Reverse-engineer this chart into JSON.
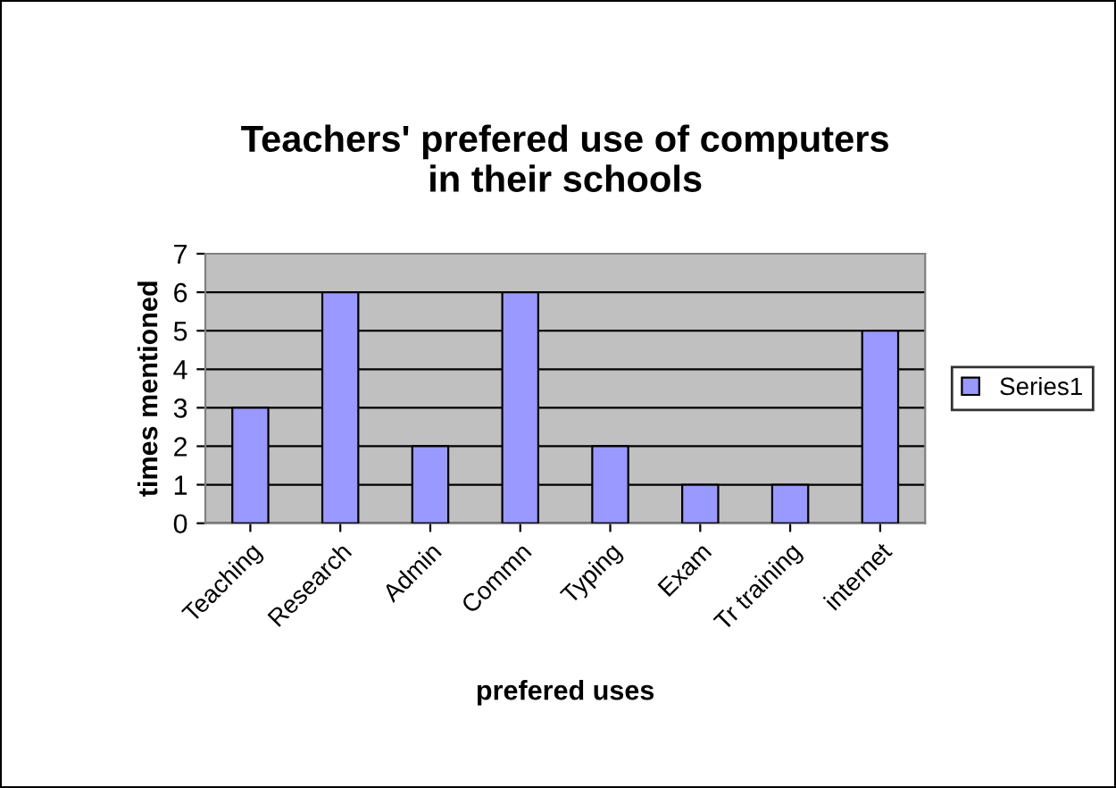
{
  "chart_data": {
    "type": "bar",
    "title": "Teachers' prefered use of computers\nin their schools",
    "xlabel": "prefered uses",
    "ylabel": "times mentioned",
    "categories": [
      "Teaching",
      "Research",
      "Admin",
      "Commn",
      "Typing",
      "Exam",
      "Tr training",
      "internet"
    ],
    "series": [
      {
        "name": "Series1",
        "color": "#9999ff",
        "values": [
          3,
          6,
          2,
          6,
          2,
          1,
          1,
          5
        ]
      }
    ],
    "ylim": [
      0,
      7
    ],
    "yticks": [
      0,
      1,
      2,
      3,
      4,
      5,
      6,
      7
    ],
    "grid": "y",
    "legend": "right"
  }
}
